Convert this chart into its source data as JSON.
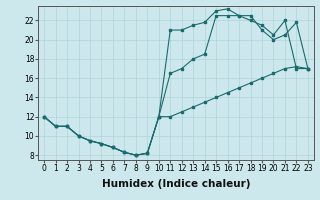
{
  "xlabel": "Humidex (Indice chaleur)",
  "background_color": "#cce8ec",
  "line_color": "#1a6b6b",
  "xlim": [
    -0.5,
    23.5
  ],
  "ylim": [
    7.5,
    23.5
  ],
  "xticks": [
    0,
    1,
    2,
    3,
    4,
    5,
    6,
    7,
    8,
    9,
    10,
    11,
    12,
    13,
    14,
    15,
    16,
    17,
    18,
    19,
    20,
    21,
    22,
    23
  ],
  "yticks": [
    8,
    10,
    12,
    14,
    16,
    18,
    20,
    22
  ],
  "line1_x": [
    0,
    1,
    2,
    3,
    4,
    5,
    6,
    7,
    8,
    9,
    10,
    11,
    12,
    13,
    14,
    15,
    16,
    17,
    18,
    19,
    20,
    21,
    22,
    23
  ],
  "line1_y": [
    12,
    11,
    11,
    10,
    9.5,
    9.2,
    8.8,
    8.3,
    8.0,
    8.2,
    12,
    12,
    12.5,
    13,
    13.5,
    14,
    14.5,
    15,
    15.5,
    16,
    16.5,
    17,
    17.2,
    17.0
  ],
  "line2_x": [
    0,
    1,
    2,
    3,
    4,
    5,
    6,
    7,
    8,
    9,
    10,
    11,
    12,
    13,
    14,
    15,
    16,
    17,
    18,
    19,
    20,
    21,
    22,
    23
  ],
  "line2_y": [
    12,
    11,
    11,
    10,
    9.5,
    9.2,
    8.8,
    8.3,
    8.0,
    8.2,
    12,
    21,
    21,
    21.5,
    21.8,
    23,
    23.2,
    22.5,
    22.5,
    21,
    20,
    20.5,
    21.8,
    17.0
  ],
  "line3_x": [
    0,
    1,
    2,
    3,
    4,
    5,
    6,
    7,
    8,
    9,
    10,
    11,
    12,
    13,
    14,
    15,
    16,
    17,
    18,
    19,
    20,
    21,
    22,
    23
  ],
  "line3_y": [
    12,
    11,
    11,
    10,
    9.5,
    9.2,
    8.8,
    8.3,
    8.0,
    8.2,
    12,
    16.5,
    17,
    18,
    18.5,
    22.5,
    22.5,
    22.5,
    22,
    21.5,
    20.5,
    22,
    17,
    17.0
  ],
  "grid_color": "#aed4d8",
  "tick_fontsize": 5.5,
  "xlabel_fontsize": 7.5
}
